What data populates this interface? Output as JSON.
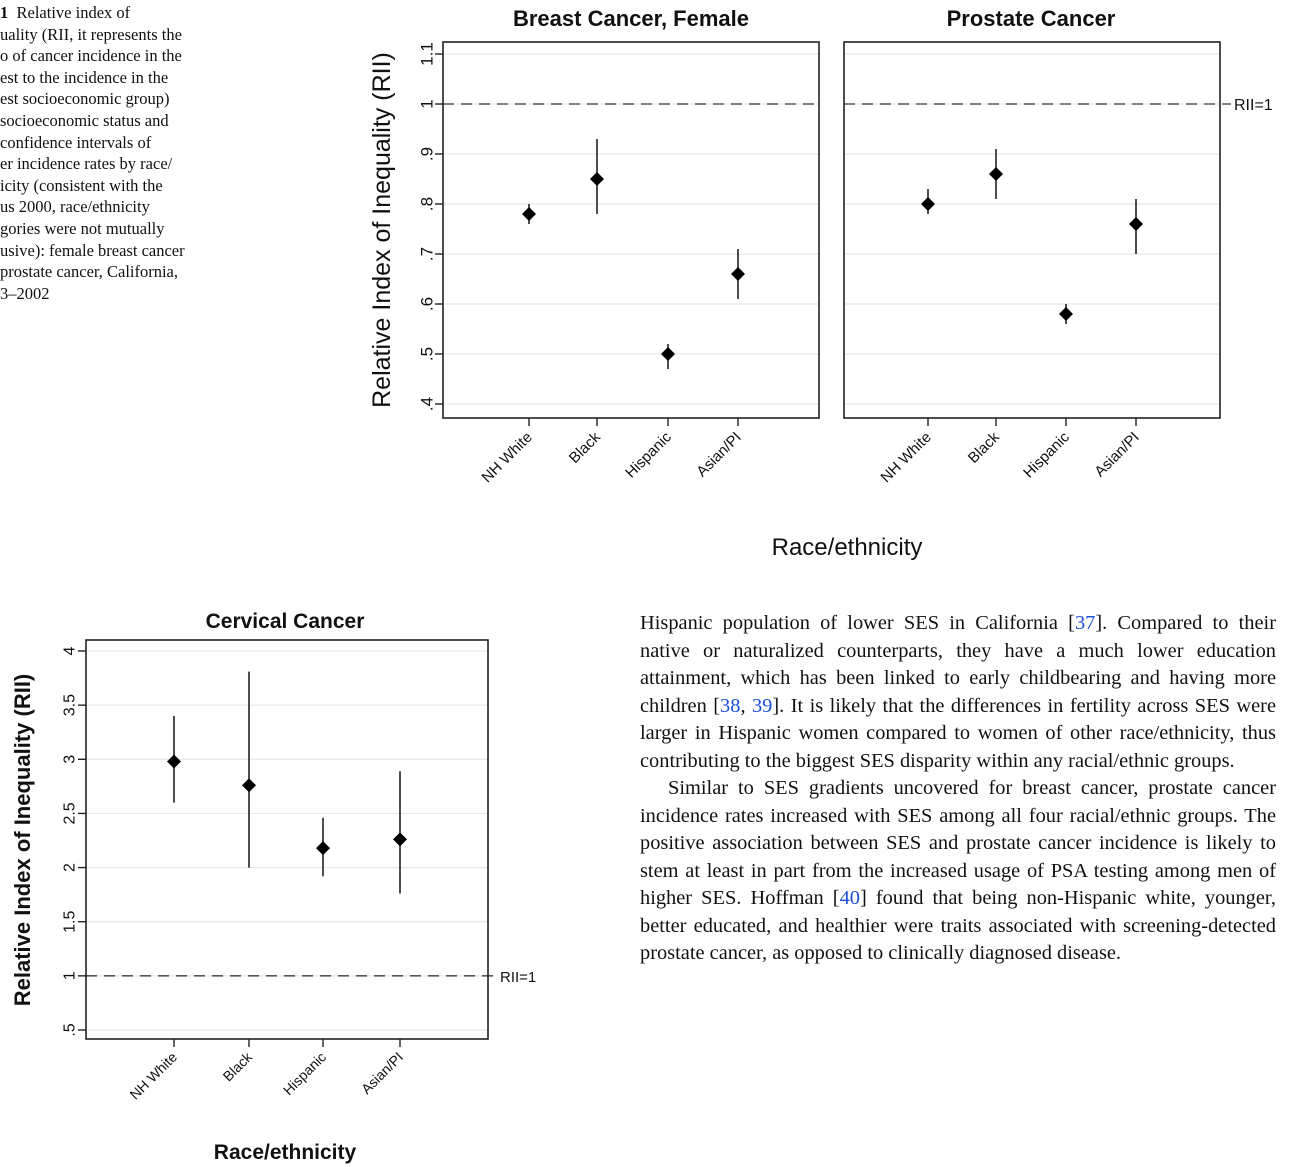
{
  "caption": {
    "lines": [
      "1  Relative index of",
      "uality (RII, it represents the",
      "o of cancer incidence in the",
      "est to the incidence in the",
      "est socioeconomic group)",
      "socioeconomic status and",
      "confidence intervals of",
      "er incidence rates by race/",
      "icity (consistent with the",
      "us 2000, race/ethnicity",
      "gories were not mutually",
      "usive): female breast cancer",
      "prostate cancer, California,",
      "3–2002"
    ]
  },
  "chart_data": [
    {
      "type": "scatter",
      "title": "Breast Cancer, Female",
      "categories": [
        "NH White",
        "Black",
        "Hispanic",
        "Asian/PI"
      ],
      "series": [
        {
          "values": [
            0.78,
            0.85,
            0.5,
            0.66
          ],
          "ci_low": [
            0.76,
            0.78,
            0.47,
            0.61
          ],
          "ci_high": [
            0.8,
            0.93,
            0.52,
            0.71
          ]
        }
      ],
      "ylabel": "Relative Index of Inequality (RII)",
      "xlabel": "Race/ethnicity",
      "ylim": [
        0.38,
        1.12
      ],
      "yticks": [
        ".4",
        ".5",
        ".6",
        ".7",
        ".8",
        ".9",
        "1",
        "1.1"
      ],
      "reference_line": 1
    },
    {
      "type": "scatter",
      "title": "Prostate Cancer",
      "categories": [
        "NH White",
        "Black",
        "Hispanic",
        "Asian/PI"
      ],
      "series": [
        {
          "values": [
            0.8,
            0.86,
            0.58,
            0.76
          ],
          "ci_low": [
            0.78,
            0.81,
            0.56,
            0.7
          ],
          "ci_high": [
            0.83,
            0.91,
            0.6,
            0.81
          ]
        }
      ],
      "ylim": [
        0.38,
        1.12
      ],
      "reference_line": 1,
      "reference_label": "RII=1"
    },
    {
      "type": "scatter",
      "title": "Cervical Cancer",
      "categories": [
        "NH White",
        "Black",
        "Hispanic",
        "Asian/PI"
      ],
      "series": [
        {
          "values": [
            2.98,
            2.76,
            2.18,
            2.26
          ],
          "ci_low": [
            2.6,
            2.0,
            1.92,
            1.76
          ],
          "ci_high": [
            3.4,
            3.81,
            2.46,
            2.89
          ]
        }
      ],
      "ylabel": "Relative Index of Inequality (RII)",
      "xlabel": "Race/ethnicity",
      "ylim": [
        0.4,
        4.1
      ],
      "yticks": [
        ".5",
        "1",
        "1.5",
        "2",
        "2.5",
        "3",
        "3.5",
        "4"
      ],
      "reference_line": 1,
      "reference_label": "RII=1"
    }
  ],
  "body": {
    "p1": [
      {
        "t": "Hispanic population of lower SES in California ["
      },
      {
        "t": "37",
        "link": true
      },
      {
        "t": "]. Compared to their native or naturalized counterparts, they have a much lower education attainment, which has been linked to early childbearing and having more children ["
      },
      {
        "t": "38",
        "link": true
      },
      {
        "t": ", "
      },
      {
        "t": "39",
        "link": true
      },
      {
        "t": "]. It is likely that the differences in fertility across SES were larger in Hispanic women compared to women of other race/ethnicity, thus contributing to the biggest SES disparity within any racial/ethnic groups."
      }
    ],
    "p2": [
      {
        "t": "Similar to SES gradients uncovered for breast cancer, prostate cancer incidence rates increased with SES among all four racial/ethnic groups. The positive association between SES and prostate cancer incidence is likely to stem at least in part from the increased usage of PSA testing among men of higher SES. Hoffman ["
      },
      {
        "t": "40",
        "link": true
      },
      {
        "t": "] found that being non-Hispanic white, younger, better educated, and healthier were traits associated with screening-detected prostate cancer, as opposed to clinically diagnosed disease."
      }
    ]
  }
}
